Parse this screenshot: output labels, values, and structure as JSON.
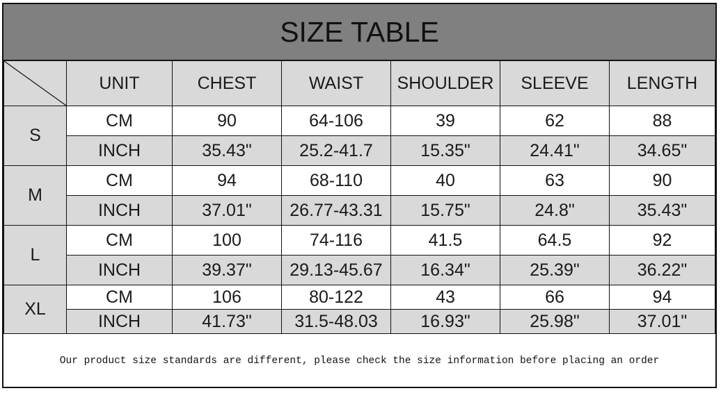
{
  "title": "SIZE TABLE",
  "headers": [
    "UNIT",
    "CHEST",
    "WAIST",
    "SHOULDER",
    "SLEEVE",
    "LENGTH"
  ],
  "sizes": [
    {
      "size": "S",
      "rows": [
        [
          "CM",
          "90",
          "64-106",
          "39",
          "62",
          "88"
        ],
        [
          "INCH",
          "35.43\"",
          "25.2-41.7",
          "15.35\"",
          "24.41\"",
          "34.65\""
        ]
      ]
    },
    {
      "size": "M",
      "rows": [
        [
          "CM",
          "94",
          "68-110",
          "40",
          "63",
          "90"
        ],
        [
          "INCH",
          "37.01\"",
          "26.77-43.31",
          "15.75\"",
          "24.8\"",
          "35.43\""
        ]
      ]
    },
    {
      "size": "L",
      "rows": [
        [
          "CM",
          "100",
          "74-116",
          "41.5",
          "64.5",
          "92"
        ],
        [
          "INCH",
          "39.37\"",
          "29.13-45.67",
          "16.34\"",
          "25.39\"",
          "36.22\""
        ]
      ]
    },
    {
      "size": "XL",
      "rows": [
        [
          "CM",
          "106",
          "80-122",
          "43",
          "66",
          "94"
        ],
        [
          "INCH",
          "41.73\"",
          "31.5-48.03",
          "16.93\"",
          "25.98\"",
          "37.01\""
        ]
      ]
    }
  ],
  "note": "Our product size standards are different, please check the size information before placing an order",
  "colors": {
    "title_bg": "#808080",
    "header_bg": "#d9d9d9",
    "alt_row_bg": "#d9d9d9"
  }
}
